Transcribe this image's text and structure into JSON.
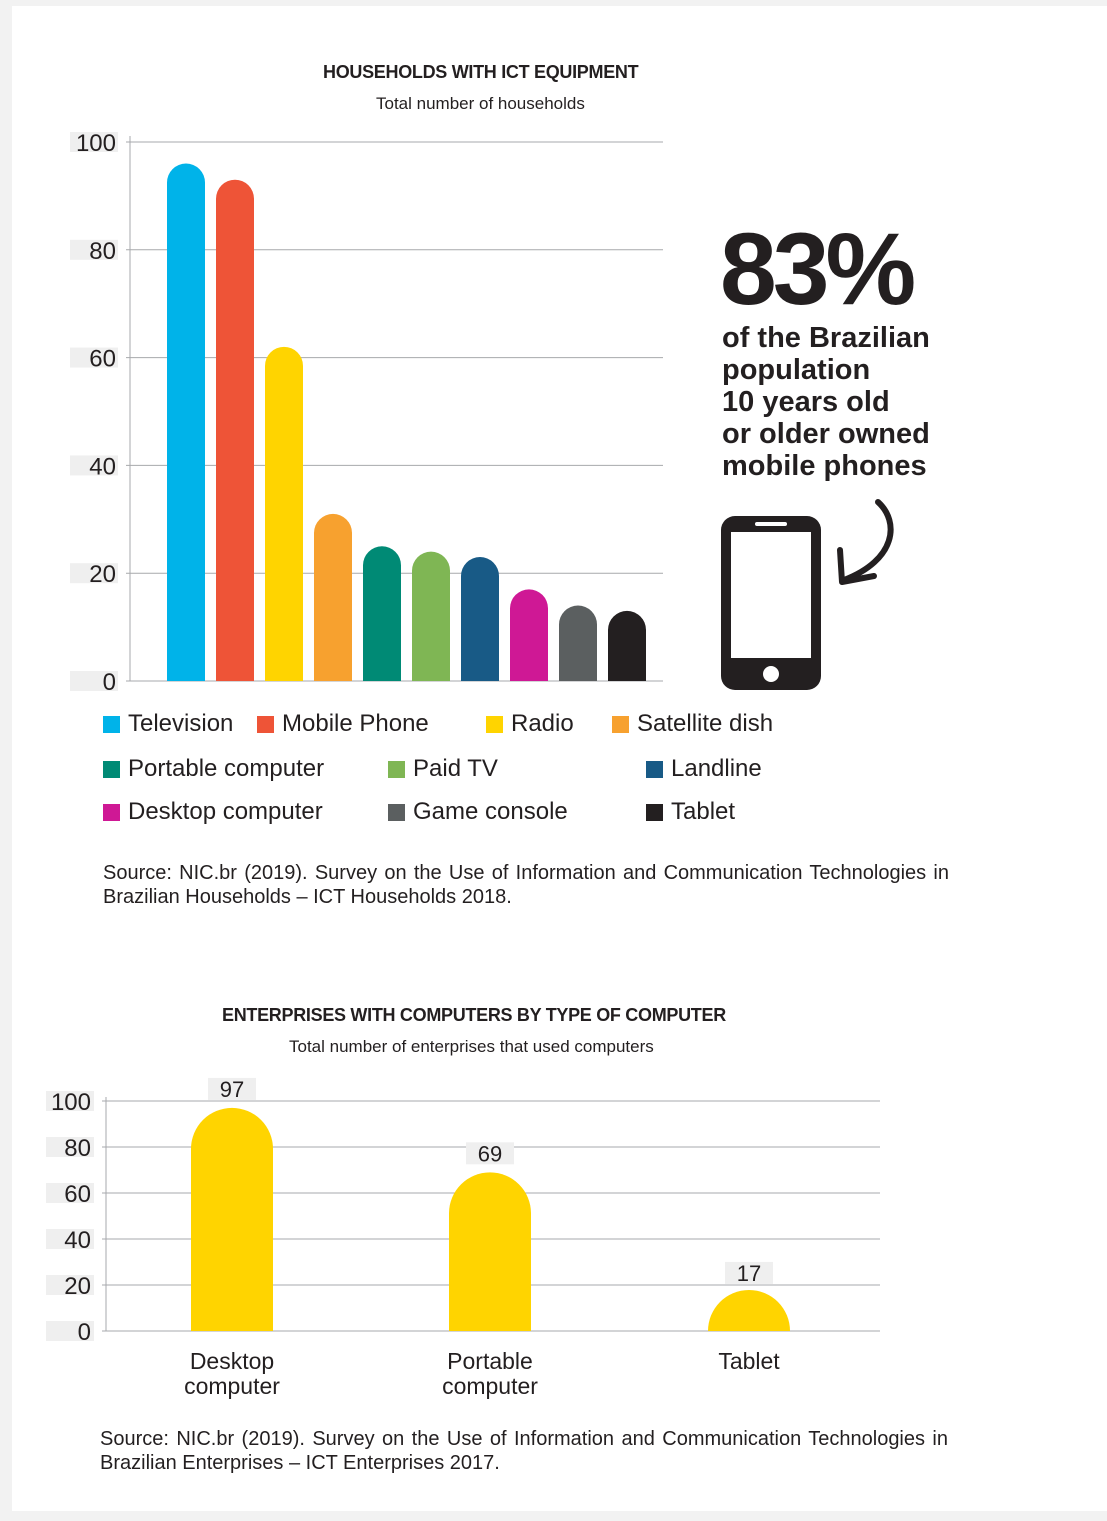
{
  "callout": {
    "percent": "83%",
    "lines": [
      "of the Brazilian",
      "population",
      "10 years old",
      "or older owned",
      "mobile phones"
    ]
  },
  "chart_data": [
    {
      "type": "bar",
      "title": "HOUSEHOLDS WITH ICT EQUIPMENT",
      "subtitle": "Total number of households",
      "categories": [
        "Television",
        "Mobile Phone",
        "Radio",
        "Satellite dish",
        "Portable computer",
        "Paid TV",
        "Landline",
        "Desktop computer",
        "Game console",
        "Tablet"
      ],
      "values": [
        96,
        93,
        62,
        31,
        25,
        24,
        23,
        17,
        14,
        13
      ],
      "colors": [
        "#00b3e9",
        "#ee5437",
        "#ffd400",
        "#f7a12f",
        "#008a75",
        "#7fb654",
        "#185a86",
        "#cf1895",
        "#5b5f60",
        "#231f20"
      ],
      "yticks": [
        0,
        20,
        40,
        60,
        80,
        100
      ],
      "ylim": [
        0,
        100
      ],
      "grid": true,
      "legend_position": "bottom",
      "source": "Source: NIC.br (2019). Survey on the Use of Information and Communication Technologies in Brazilian Households – ICT Households 2018."
    },
    {
      "type": "bar",
      "title": "ENTERPRISES WITH COMPUTERS BY TYPE OF COMPUTER",
      "subtitle": "Total number of enterprises that used computers",
      "categories": [
        "Desktop computer",
        "Portable computer",
        "Tablet"
      ],
      "category_lines": [
        [
          "Desktop",
          "computer"
        ],
        [
          "Portable",
          "computer"
        ],
        [
          "Tablet"
        ]
      ],
      "values": [
        97,
        69,
        17
      ],
      "value_labels": [
        "97",
        "69",
        "17"
      ],
      "color": "#ffd400",
      "yticks": [
        0,
        20,
        40,
        60,
        80,
        100
      ],
      "ylim": [
        0,
        100
      ],
      "grid": true,
      "source": "Source: NIC.br (2019). Survey on the Use of Information and Communication Technologies in Brazilian Enterprises – ICT Enterprises 2017."
    }
  ]
}
